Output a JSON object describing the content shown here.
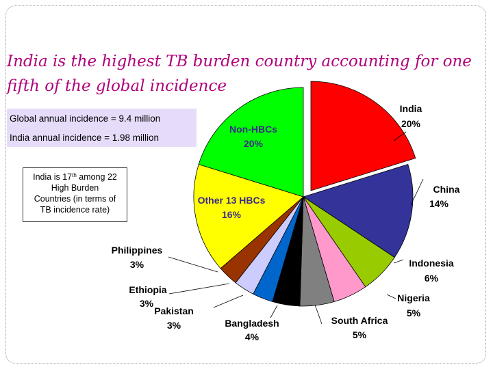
{
  "slide": {
    "title_line1": "India is the highest TB burden country accounting for one",
    "title_line2": "fifth of the global incidence",
    "title_color": "#b0007a"
  },
  "stats": {
    "global_incidence": "Global annual incidence = 9.4 million",
    "india_incidence": "India annual incidence = 1.98 million",
    "box_color": "#e6dcfa"
  },
  "note": {
    "line1_before": "India is 17",
    "line1_sup": "th",
    "line1_after": " among 22",
    "line2": "High Burden",
    "line3": "Countries (in terms of",
    "line4": "TB incidence rate)"
  },
  "chart_data": {
    "type": "pie",
    "title": "",
    "start_angle_deg": 0,
    "direction": "clockwise",
    "exploded": [
      "India"
    ],
    "slices": [
      {
        "label": "India",
        "pct_label": "20%",
        "value": 20,
        "color": "#ff0000"
      },
      {
        "label": "China",
        "pct_label": "14%",
        "value": 14,
        "color": "#333399"
      },
      {
        "label": "Indonesia",
        "pct_label": "6%",
        "value": 6,
        "color": "#99cc00"
      },
      {
        "label": "Nigeria",
        "pct_label": "5%",
        "value": 5,
        "color": "#ff99cc"
      },
      {
        "label": "South Africa",
        "pct_label": "5%",
        "value": 5,
        "color": "#808080"
      },
      {
        "label": "Bangladesh",
        "pct_label": "4%",
        "value": 4,
        "color": "#000000"
      },
      {
        "label": "Pakistan",
        "pct_label": "3%",
        "value": 3,
        "color": "#0066cc"
      },
      {
        "label": "Ethiopia",
        "pct_label": "3%",
        "value": 3,
        "color": "#ccccff"
      },
      {
        "label": "Philippines",
        "pct_label": "3%",
        "value": 3,
        "color": "#993300"
      },
      {
        "label": "Other 13 HBCs",
        "pct_label": "16%",
        "value": 16,
        "color": "#ffff00"
      },
      {
        "label": "Non-HBCs",
        "pct_label": "20%",
        "value": 20,
        "color": "#00ff00"
      }
    ]
  }
}
